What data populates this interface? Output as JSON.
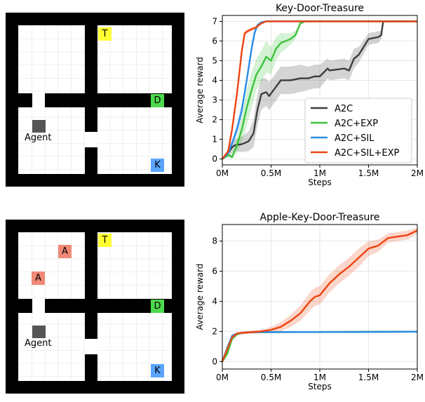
{
  "top_grid": {
    "labels": [
      {
        "text": "T",
        "color": "#ffff33"
      },
      {
        "text": "D",
        "color": "#4dd94d"
      },
      {
        "text": "K",
        "color": "#5aa5ff"
      }
    ],
    "agent_label": "Agent"
  },
  "bottom_grid": {
    "labels": [
      {
        "text": "T",
        "color": "#ffff33"
      },
      {
        "text": "A",
        "color": "#f08878"
      },
      {
        "text": "A",
        "color": "#f08878"
      },
      {
        "text": "D",
        "color": "#4dd94d"
      },
      {
        "text": "K",
        "color": "#5aa5ff"
      }
    ],
    "agent_label": "Agent"
  },
  "colors": {
    "A2C": "#3d3d3d",
    "A2C+EXP": "#3cc43c",
    "A2C+SIL": "#2b8de6",
    "A2C+SIL+EXP": "#ee4411"
  },
  "chart_data": [
    {
      "type": "line",
      "title": "Key-Door-Treasure",
      "xlabel": "Steps",
      "ylabel": "Average reward",
      "xlim": [
        0,
        2000000
      ],
      "ylim": [
        -0.3,
        7.3
      ],
      "xticks": [
        0,
        500000,
        1000000,
        1500000,
        2000000
      ],
      "xtick_labels": [
        "0M",
        "0.5M",
        "1M",
        "1.5M",
        "2M"
      ],
      "yticks": [
        0,
        1,
        2,
        3,
        4,
        5,
        6,
        7
      ],
      "ytick_labels": [
        "0",
        "1",
        "2",
        "3",
        "4",
        "5",
        "6",
        "7"
      ],
      "grid": true,
      "legend": "lower-right",
      "series": [
        {
          "name": "A2C",
          "x": [
            0,
            60000,
            100000,
            130000,
            200000,
            270000,
            320000,
            360000,
            400000,
            450000,
            480000,
            600000,
            700000,
            800000,
            880000,
            950000,
            1000000,
            1080000,
            1100000,
            1250000,
            1300000,
            1350000,
            1400000,
            1500000,
            1600000,
            1630000,
            1650000,
            2000000
          ],
          "y": [
            0,
            0.3,
            0.6,
            0.7,
            0.75,
            0.9,
            1.3,
            2.5,
            3.3,
            3.4,
            3.2,
            4.0,
            4.0,
            4.1,
            4.1,
            4.2,
            4.2,
            4.6,
            4.5,
            4.6,
            4.5,
            5.1,
            5.3,
            6.1,
            6.2,
            6.3,
            7.0,
            7.0
          ],
          "band": [
            0,
            0.2,
            0.3,
            0.3,
            0.4,
            0.5,
            0.7,
            0.8,
            0.8,
            0.7,
            0.7,
            0.7,
            0.7,
            0.7,
            0.6,
            0.6,
            0.6,
            0.5,
            0.5,
            0.5,
            0.5,
            0.5,
            0.4,
            0.3,
            0.3,
            0.2,
            0.05,
            0.05
          ]
        },
        {
          "name": "A2C+EXP",
          "x": [
            0,
            60000,
            100000,
            150000,
            200000,
            250000,
            300000,
            350000,
            400000,
            450000,
            500000,
            550000,
            600000,
            650000,
            700000,
            750000,
            800000,
            850000,
            900000,
            2000000
          ],
          "y": [
            0,
            0.2,
            0.1,
            0.7,
            1.5,
            2.6,
            3.5,
            4.3,
            4.7,
            5.2,
            5.0,
            5.6,
            5.9,
            6.0,
            6.1,
            6.3,
            6.9,
            7.0,
            7.0,
            7.0
          ],
          "band": [
            0,
            0.1,
            0.1,
            0.4,
            0.7,
            0.9,
            0.9,
            0.8,
            0.8,
            0.8,
            0.7,
            0.6,
            0.5,
            0.4,
            0.3,
            0.2,
            0.1,
            0.05,
            0.05,
            0.05
          ]
        },
        {
          "name": "A2C+SIL",
          "x": [
            0,
            60000,
            100000,
            150000,
            200000,
            250000,
            300000,
            330000,
            360000,
            400000,
            450000,
            2000000
          ],
          "y": [
            0,
            0.3,
            0.8,
            1.5,
            2.5,
            4.0,
            5.6,
            6.4,
            6.8,
            6.95,
            7.0,
            7.0
          ],
          "band": [
            0,
            0.1,
            0.2,
            0.3,
            0.3,
            0.3,
            0.3,
            0.2,
            0.1,
            0.05,
            0.05,
            0.05
          ]
        },
        {
          "name": "A2C+SIL+EXP",
          "x": [
            0,
            60000,
            100000,
            150000,
            200000,
            230000,
            260000,
            300000,
            350000,
            400000,
            450000,
            2000000
          ],
          "y": [
            0,
            0.4,
            1.5,
            3.3,
            5.5,
            6.4,
            6.5,
            6.6,
            6.7,
            6.9,
            7.0,
            7.0
          ],
          "band": [
            0,
            0.1,
            0.2,
            0.3,
            0.2,
            0.1,
            0.1,
            0.1,
            0.1,
            0.05,
            0.05,
            0.05
          ]
        }
      ]
    },
    {
      "type": "line",
      "title": "Apple-Key-Door-Treasure",
      "xlabel": "Steps",
      "ylabel": "Average reward",
      "xlim": [
        0,
        2000000
      ],
      "ylim": [
        -0.5,
        9.1
      ],
      "xticks": [
        0,
        500000,
        1000000,
        1500000,
        2000000
      ],
      "xtick_labels": [
        "0M",
        "0.5M",
        "1M",
        "1.5M",
        "2M"
      ],
      "yticks": [
        0,
        2,
        4,
        6,
        8
      ],
      "ytick_labels": [
        "0",
        "2",
        "4",
        "6",
        "8"
      ],
      "grid": true,
      "legend": "none",
      "series": [
        {
          "name": "A2C",
          "x": [
            0,
            50000,
            100000,
            150000,
            200000,
            300000,
            2000000
          ],
          "y": [
            0,
            0.8,
            1.7,
            1.85,
            1.9,
            1.95,
            1.98
          ],
          "band": [
            0,
            0.1,
            0.1,
            0.05,
            0.05,
            0.05,
            0.05
          ]
        },
        {
          "name": "A2C+EXP",
          "x": [
            0,
            50000,
            100000,
            150000,
            200000,
            300000,
            2000000
          ],
          "y": [
            0,
            0.5,
            1.5,
            1.8,
            1.9,
            1.95,
            1.98
          ],
          "band": [
            0,
            0.1,
            0.1,
            0.05,
            0.05,
            0.05,
            0.05
          ]
        },
        {
          "name": "A2C+SIL",
          "x": [
            0,
            50000,
            100000,
            150000,
            200000,
            300000,
            2000000
          ],
          "y": [
            0,
            0.9,
            1.7,
            1.85,
            1.9,
            1.95,
            1.98
          ],
          "band": [
            0,
            0.1,
            0.1,
            0.05,
            0.05,
            0.05,
            0.05
          ]
        },
        {
          "name": "A2C+SIL+EXP",
          "x": [
            0,
            50000,
            100000,
            150000,
            200000,
            300000,
            400000,
            500000,
            600000,
            700000,
            800000,
            900000,
            950000,
            1000000,
            1100000,
            1200000,
            1300000,
            1400000,
            1500000,
            1600000,
            1700000,
            1800000,
            1900000,
            2000000
          ],
          "y": [
            0,
            0.8,
            1.6,
            1.85,
            1.9,
            1.95,
            2.0,
            2.1,
            2.3,
            2.7,
            3.2,
            4.0,
            4.3,
            4.4,
            5.2,
            5.8,
            6.3,
            6.9,
            7.5,
            7.7,
            8.2,
            8.3,
            8.4,
            8.7
          ],
          "band": [
            0,
            0.1,
            0.1,
            0.1,
            0.1,
            0.1,
            0.1,
            0.2,
            0.3,
            0.4,
            0.5,
            0.6,
            0.6,
            0.6,
            0.6,
            0.6,
            0.6,
            0.6,
            0.5,
            0.4,
            0.3,
            0.3,
            0.3,
            0.2
          ]
        }
      ]
    }
  ]
}
